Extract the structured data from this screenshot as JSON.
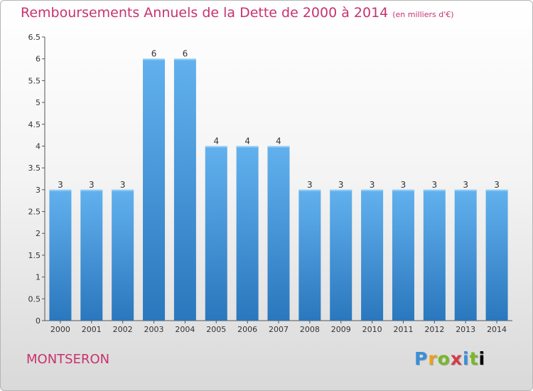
{
  "header": {
    "title": "Remboursements Annuels de la Dette de 2000 à 2014",
    "unit": "(en milliers d'€)"
  },
  "footer": {
    "city": "MONTSERON",
    "logo_text": "Proxiti"
  },
  "colors": {
    "title": "#c8326e",
    "bar_top": "#62b1ee",
    "bar_bottom": "#2a77bd"
  },
  "chart_data": {
    "type": "bar",
    "title": "Remboursements Annuels de la Dette de 2000 à 2014",
    "xlabel": "",
    "ylabel": "",
    "categories": [
      "2000",
      "2001",
      "2002",
      "2003",
      "2004",
      "2005",
      "2006",
      "2007",
      "2008",
      "2009",
      "2010",
      "2011",
      "2012",
      "2013",
      "2014"
    ],
    "values": [
      3,
      3,
      3,
      6,
      6,
      4,
      4,
      4,
      3,
      3,
      3,
      3,
      3,
      3,
      3
    ],
    "data_labels": [
      "3",
      "3",
      "3",
      "6",
      "6",
      "4",
      "4",
      "4",
      "3",
      "3",
      "3",
      "3",
      "3",
      "3",
      "3"
    ],
    "ylim": [
      0,
      6.5
    ],
    "yticks": [
      0,
      0.5,
      1,
      1.5,
      2,
      2.5,
      3,
      3.5,
      4,
      4.5,
      5,
      5.5,
      6,
      6.5
    ],
    "ytick_labels": [
      "0",
      "0.5",
      "1",
      "1.5",
      "2",
      "2.5",
      "3",
      "3.5",
      "4",
      "4.5",
      "5",
      "5.5",
      "6",
      "6.5"
    ],
    "grid": false,
    "legend": "none"
  }
}
